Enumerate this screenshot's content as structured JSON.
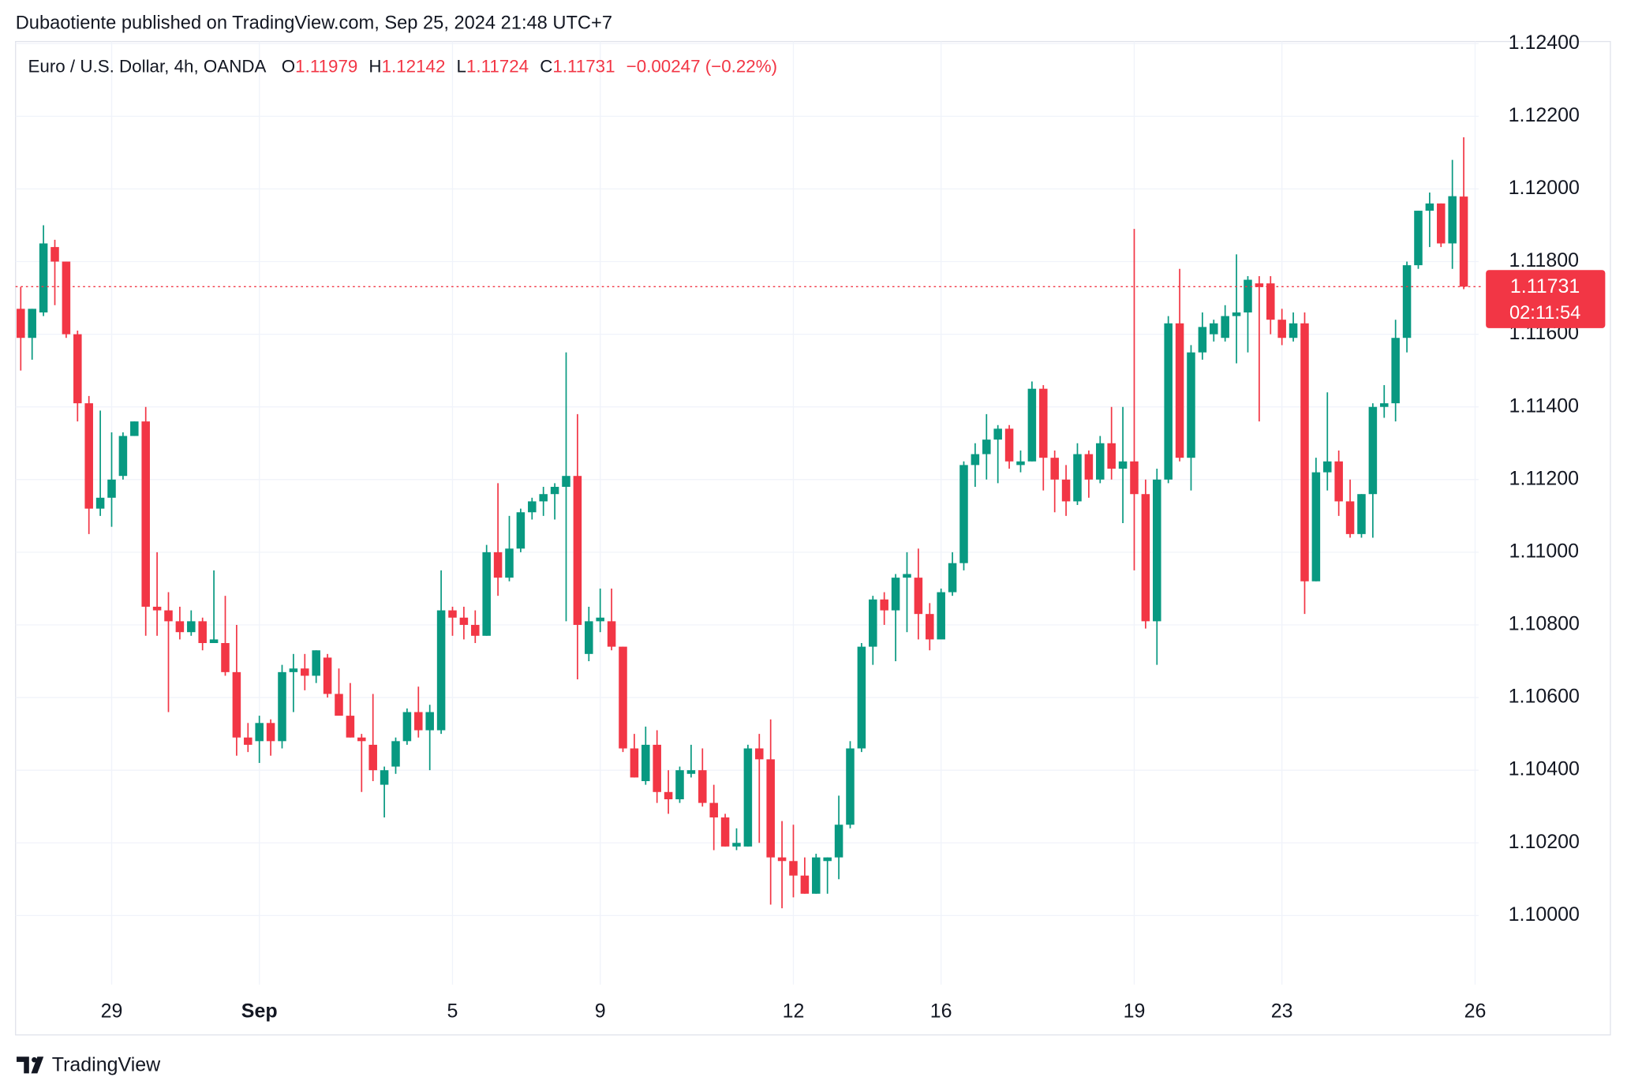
{
  "header": {
    "byline": "Dubaotiente published on TradingView.com, Sep 25, 2024 21:48 UTC+7",
    "brand": "TradingView"
  },
  "chart_data": {
    "type": "candlestick",
    "title": "Euro / U.S. Dollar, 4h, OANDA",
    "legend_labels": [
      "O",
      "H",
      "L",
      "C"
    ],
    "change": "−0.00247 (−0.22%)",
    "countdown": "02:11:54",
    "up_color": "#089981",
    "down_color": "#f23645",
    "open": [
      1.1167,
      1.1159,
      1.1166,
      1.1184,
      1.118,
      1.116,
      1.1141,
      1.1112,
      1.1115,
      1.1121,
      1.1132,
      1.1136,
      1.1085,
      1.1084,
      1.1081,
      1.1078,
      1.1081,
      1.1075,
      1.1075,
      1.1067,
      1.1049,
      1.1048,
      1.1053,
      1.1048,
      1.1067,
      1.1068,
      1.1066,
      1.1071,
      1.1061,
      1.1055,
      1.1049,
      1.1047,
      1.1036,
      1.1041,
      1.1048,
      1.1056,
      1.1051,
      1.1051,
      1.1084,
      1.1082,
      1.108,
      1.1077,
      1.11,
      1.1093,
      1.1101,
      1.1111,
      1.1114,
      1.1116,
      1.1118,
      1.1121,
      1.1072,
      1.1081,
      1.1081,
      1.1074,
      1.1046,
      1.1037,
      1.1047,
      1.1034,
      1.1032,
      1.1039,
      1.104,
      1.1031,
      1.1027,
      1.1019,
      1.1019,
      1.1046,
      1.1043,
      1.1016,
      1.1015,
      1.1011,
      1.1006,
      1.1015,
      1.1016,
      1.1025,
      1.1046,
      1.1074,
      1.1087,
      1.1084,
      1.1093,
      1.1093,
      1.1083,
      1.1076,
      1.1089,
      1.1097,
      1.1124,
      1.1127,
      1.1131,
      1.1134,
      1.1124,
      1.1125,
      1.1145,
      1.1126,
      1.112,
      1.1114,
      1.1127,
      1.112,
      1.113,
      1.1123,
      1.1125,
      1.1116,
      1.1081,
      1.112,
      1.1163,
      1.1126,
      1.1155,
      1.116,
      1.1159,
      1.1165,
      1.1166,
      1.1174,
      1.1174,
      1.1164,
      1.1159,
      1.1163,
      1.1092,
      1.1122,
      1.1125,
      1.1114,
      1.1105,
      1.1116,
      1.114,
      1.1141,
      1.1159,
      1.1179,
      1.1194,
      1.1196,
      1.1185,
      1.11979
    ],
    "high": [
      1.1173,
      1.1167,
      1.119,
      1.1186,
      1.118,
      1.1161,
      1.1143,
      1.1139,
      1.1133,
      1.1133,
      1.1136,
      1.114,
      1.11,
      1.1089,
      1.1085,
      1.1084,
      1.1082,
      1.1095,
      1.1088,
      1.108,
      1.1053,
      1.1055,
      1.1054,
      1.1069,
      1.1072,
      1.1072,
      1.1073,
      1.1072,
      1.1068,
      1.1064,
      1.105,
      1.1061,
      1.1041,
      1.1049,
      1.1057,
      1.1063,
      1.1058,
      1.1095,
      1.1085,
      1.1085,
      1.1084,
      1.1102,
      1.1119,
      1.111,
      1.1112,
      1.1115,
      1.1118,
      1.1119,
      1.1155,
      1.1138,
      1.1085,
      1.109,
      1.109,
      1.1074,
      1.105,
      1.1052,
      1.1051,
      1.104,
      1.1041,
      1.1047,
      1.1046,
      1.1036,
      1.1028,
      1.1024,
      1.1047,
      1.105,
      1.1054,
      1.1026,
      1.1025,
      1.1016,
      1.1017,
      1.1016,
      1.1033,
      1.1048,
      1.1075,
      1.1088,
      1.1089,
      1.1094,
      1.11,
      1.1101,
      1.1086,
      1.109,
      1.11,
      1.1125,
      1.113,
      1.1138,
      1.1135,
      1.1135,
      1.1128,
      1.1147,
      1.1146,
      1.1128,
      1.1124,
      1.113,
      1.1128,
      1.1132,
      1.114,
      1.114,
      1.1189,
      1.112,
      1.1123,
      1.1165,
      1.1178,
      1.1157,
      1.1166,
      1.1164,
      1.1168,
      1.1182,
      1.1176,
      1.1176,
      1.1176,
      1.1167,
      1.1166,
      1.1166,
      1.1126,
      1.1144,
      1.1128,
      1.112,
      1.1116,
      1.1141,
      1.1146,
      1.1164,
      1.118,
      1.1194,
      1.1199,
      1.1196,
      1.1208,
      1.12142
    ],
    "low": [
      1.115,
      1.1153,
      1.1165,
      1.1168,
      1.1159,
      1.1136,
      1.1105,
      1.111,
      1.1107,
      1.112,
      1.1132,
      1.1077,
      1.1077,
      1.1056,
      1.1076,
      1.1077,
      1.1073,
      1.1075,
      1.1066,
      1.1044,
      1.1045,
      1.1042,
      1.1044,
      1.1046,
      1.1056,
      1.1062,
      1.1064,
      1.106,
      1.1056,
      1.1049,
      1.1034,
      1.1037,
      1.1027,
      1.1039,
      1.1047,
      1.1049,
      1.104,
      1.105,
      1.1077,
      1.1076,
      1.1075,
      1.1077,
      1.1088,
      1.1092,
      1.11,
      1.1109,
      1.111,
      1.1109,
      1.1081,
      1.1065,
      1.107,
      1.1078,
      1.1073,
      1.1045,
      1.1038,
      1.1036,
      1.1031,
      1.1028,
      1.1031,
      1.1038,
      1.103,
      1.1018,
      1.1019,
      1.1018,
      1.1019,
      1.102,
      1.1003,
      1.1002,
      1.1005,
      1.1006,
      1.1006,
      1.1006,
      1.101,
      1.1024,
      1.1045,
      1.1069,
      1.108,
      1.107,
      1.1078,
      1.1076,
      1.1073,
      1.1077,
      1.1088,
      1.1095,
      1.1118,
      1.112,
      1.1119,
      1.1123,
      1.1122,
      1.1125,
      1.1117,
      1.1111,
      1.111,
      1.1113,
      1.1115,
      1.1119,
      1.112,
      1.1108,
      1.1095,
      1.1079,
      1.1069,
      1.1119,
      1.1125,
      1.1117,
      1.1153,
      1.1158,
      1.1158,
      1.1152,
      1.1155,
      1.1136,
      1.116,
      1.1157,
      1.1158,
      1.1083,
      1.1092,
      1.1117,
      1.111,
      1.1104,
      1.1104,
      1.1104,
      1.1137,
      1.1136,
      1.1155,
      1.1178,
      1.1184,
      1.1184,
      1.1178,
      1.11724
    ],
    "close": [
      1.1159,
      1.1167,
      1.1185,
      1.118,
      1.116,
      1.1141,
      1.1112,
      1.1115,
      1.112,
      1.1132,
      1.1136,
      1.1085,
      1.1084,
      1.1081,
      1.1078,
      1.1081,
      1.1075,
      1.1076,
      1.1067,
      1.1049,
      1.1047,
      1.1053,
      1.1048,
      1.1067,
      1.1068,
      1.1066,
      1.1073,
      1.1061,
      1.1055,
      1.1049,
      1.1048,
      1.104,
      1.104,
      1.1048,
      1.1056,
      1.1051,
      1.1056,
      1.1084,
      1.1082,
      1.108,
      1.1077,
      1.11,
      1.1093,
      1.1101,
      1.1111,
      1.1114,
      1.1116,
      1.1118,
      1.1121,
      1.108,
      1.1081,
      1.1082,
      1.1074,
      1.1046,
      1.1038,
      1.1047,
      1.1034,
      1.1032,
      1.104,
      1.104,
      1.1031,
      1.1027,
      1.1019,
      1.102,
      1.1046,
      1.1043,
      1.1016,
      1.1015,
      1.1011,
      1.1006,
      1.1016,
      1.1016,
      1.1025,
      1.1046,
      1.1074,
      1.1087,
      1.1084,
      1.1093,
      1.1094,
      1.1083,
      1.1076,
      1.1089,
      1.1097,
      1.1124,
      1.1127,
      1.1131,
      1.1134,
      1.1125,
      1.1125,
      1.1145,
      1.1126,
      1.112,
      1.1114,
      1.1127,
      1.112,
      1.113,
      1.1123,
      1.1125,
      1.1116,
      1.1081,
      1.112,
      1.1163,
      1.1126,
      1.1155,
      1.1162,
      1.1163,
      1.1165,
      1.1166,
      1.1175,
      1.1173,
      1.1164,
      1.1159,
      1.1163,
      1.1092,
      1.1122,
      1.1125,
      1.1114,
      1.1105,
      1.1116,
      1.114,
      1.1141,
      1.1159,
      1.1179,
      1.1194,
      1.1196,
      1.1185,
      1.1198,
      1.11731
    ],
    "ylim": [
      1.0981,
      1.1241
    ],
    "yticks": [
      {
        "value": 1.1,
        "label": "1.10000"
      },
      {
        "value": 1.102,
        "label": "1.10200"
      },
      {
        "value": 1.104,
        "label": "1.10400"
      },
      {
        "value": 1.106,
        "label": "1.10600"
      },
      {
        "value": 1.108,
        "label": "1.10800"
      },
      {
        "value": 1.11,
        "label": "1.11000"
      },
      {
        "value": 1.112,
        "label": "1.11200"
      },
      {
        "value": 1.114,
        "label": "1.11400"
      },
      {
        "value": 1.116,
        "label": "1.11600"
      },
      {
        "value": 1.118,
        "label": "1.11800"
      },
      {
        "value": 1.12,
        "label": "1.12000"
      },
      {
        "value": 1.122,
        "label": "1.12200"
      },
      {
        "value": 1.124,
        "label": "1.12400"
      }
    ],
    "xticks": [
      {
        "value": 8,
        "label": "29"
      },
      {
        "value": 21,
        "label": "Sep"
      },
      {
        "value": 38,
        "label": "5"
      },
      {
        "value": 51,
        "label": "9"
      },
      {
        "value": 68,
        "label": "12"
      },
      {
        "value": 81,
        "label": "16"
      },
      {
        "value": 98,
        "label": "19"
      },
      {
        "value": 111,
        "label": "23"
      },
      {
        "value": 128,
        "label": "26"
      }
    ],
    "grid": true
  }
}
